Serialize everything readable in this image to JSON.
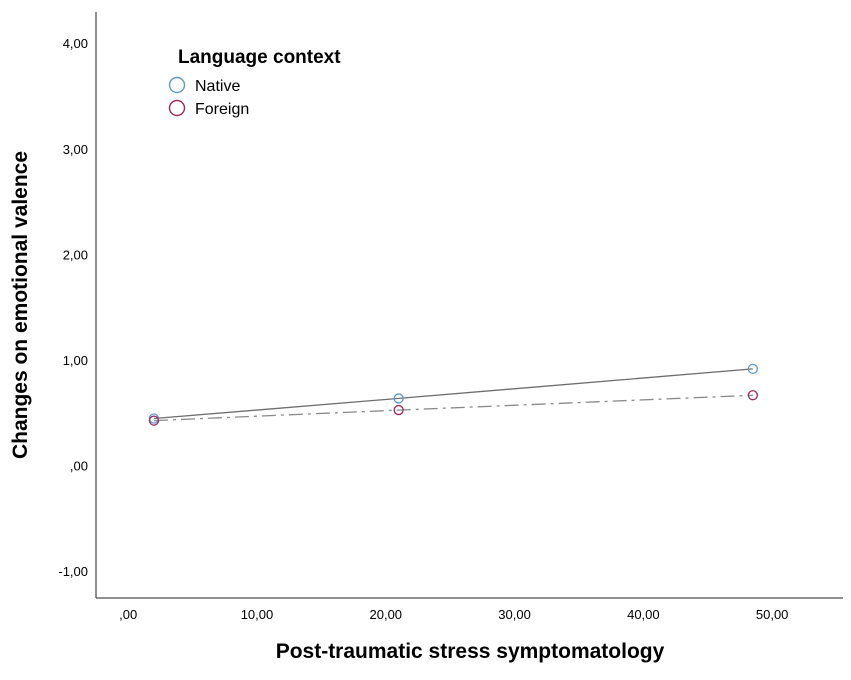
{
  "chart_data": {
    "type": "line",
    "xlabel": "Post-traumatic stress symptomatology",
    "ylabel": "Changes on emotional valence",
    "xlim": [
      -2.5,
      55.5
    ],
    "ylim": [
      -1.25,
      4.3
    ],
    "xticks": [
      0,
      10,
      20,
      30,
      40,
      50
    ],
    "xtick_labels": [
      ",00",
      "10,00",
      "20,00",
      "30,00",
      "40,00",
      "50,00"
    ],
    "yticks": [
      -1,
      0,
      1,
      2,
      3,
      4
    ],
    "ytick_labels": [
      "-1,00",
      ",00",
      "1,00",
      "2,00",
      "3,00",
      "4,00"
    ],
    "grid": false,
    "legend": {
      "title": "Language context",
      "position": "top-left"
    },
    "series": [
      {
        "name": "Native",
        "color": "#5b9bc9",
        "line_color": "#6e6e6e",
        "line_style": "solid",
        "x": [
          2.0,
          21.0,
          48.5
        ],
        "y": [
          0.45,
          0.64,
          0.92
        ]
      },
      {
        "name": "Foreign",
        "color": "#a0285a",
        "line_color": "#8a8a8a",
        "line_style": "dash-dot",
        "x": [
          2.0,
          21.0,
          48.5
        ],
        "y": [
          0.43,
          0.53,
          0.67
        ]
      }
    ]
  }
}
